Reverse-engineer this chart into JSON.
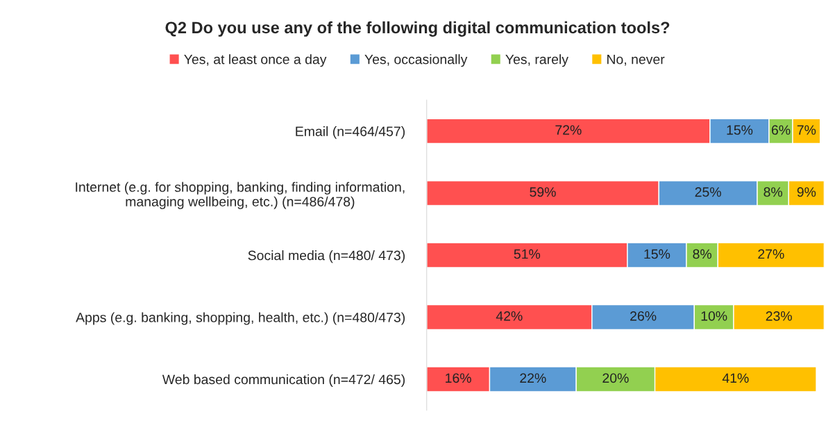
{
  "chart_data": {
    "type": "bar",
    "orientation": "horizontal",
    "stacked": true,
    "legend": "top",
    "tick_labels": "y",
    "title": "Q2 Do you use any of the following digital communication tools?",
    "categories": [
      "Email (n=464/457)",
      "Internet (e.g. for shopping, banking, finding information,\nmanaging wellbeing, etc.) (n=486/478)",
      "Social media (n=480/ 473)",
      "Apps (e.g. banking, shopping, health, etc.) (n=480/473)",
      "Web based communication (n=472/ 465)"
    ],
    "series": [
      {
        "name": "Yes, at least once a day",
        "color": "#ff5050",
        "values": [
          72,
          59,
          51,
          42,
          16
        ],
        "value_labels": [
          "72%",
          "59%",
          "51%",
          "42%",
          "16%"
        ]
      },
      {
        "name": "Yes, occasionally",
        "color": "#5b9bd5",
        "values": [
          15,
          25,
          15,
          26,
          22
        ],
        "value_labels": [
          "15%",
          "25%",
          "15%",
          "26%",
          "22%"
        ]
      },
      {
        "name": "Yes, rarely",
        "color": "#92d050",
        "values": [
          6,
          8,
          8,
          10,
          20
        ],
        "value_labels": [
          "6%",
          "8%",
          "8%",
          "10%",
          "20%"
        ]
      },
      {
        "name": "No, never",
        "color": "#ffc000",
        "values": [
          7,
          9,
          27,
          23,
          41
        ],
        "value_labels": [
          "7%",
          "9%",
          "27%",
          "23%",
          "41%"
        ]
      }
    ]
  }
}
